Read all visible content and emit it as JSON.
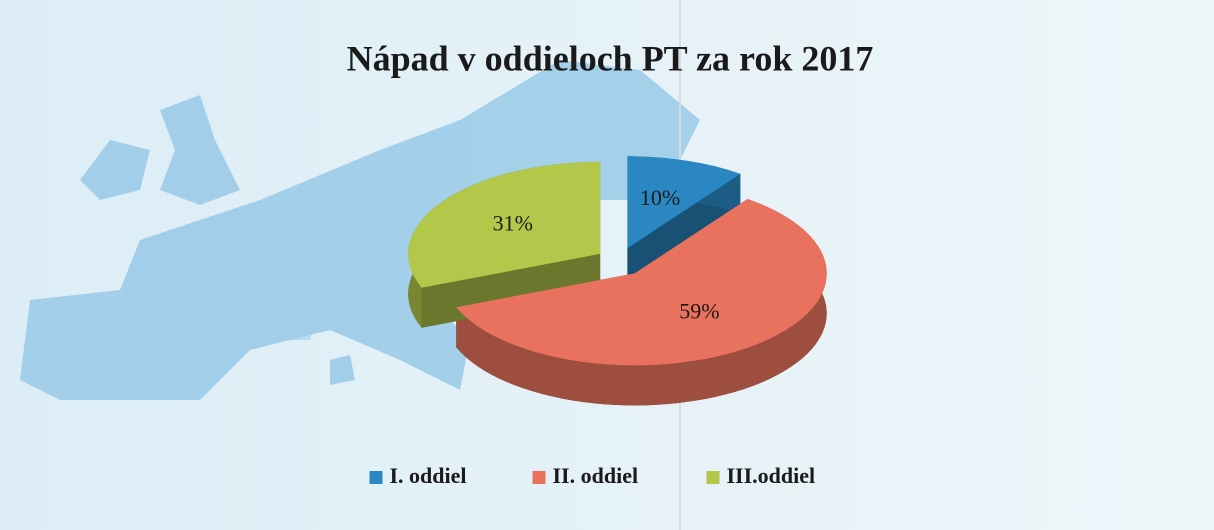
{
  "chart_data": {
    "type": "pie",
    "title": "Nápad v oddieloch PT za rok 2017",
    "categories": [
      "I. oddiel",
      "II. oddiel",
      "III.oddiel"
    ],
    "values": [
      10,
      59,
      31
    ],
    "value_labels": [
      "10%",
      "59%",
      "31%"
    ],
    "colors": [
      "#2a87c2",
      "#e8725d",
      "#b3c74a"
    ],
    "legend": "bottom"
  }
}
